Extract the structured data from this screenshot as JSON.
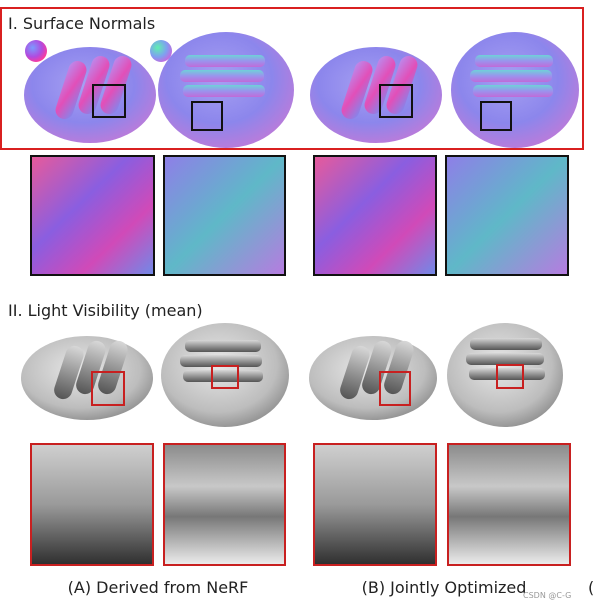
{
  "sections": [
    {
      "title": "I. Surface Normals"
    },
    {
      "title": "II. Light Visibility (mean)"
    }
  ],
  "captions": [
    "(A) Derived from NeRF",
    "(B) Jointly Optimized"
  ],
  "watermark": "CSDN @C-G",
  "edge_text": "("
}
